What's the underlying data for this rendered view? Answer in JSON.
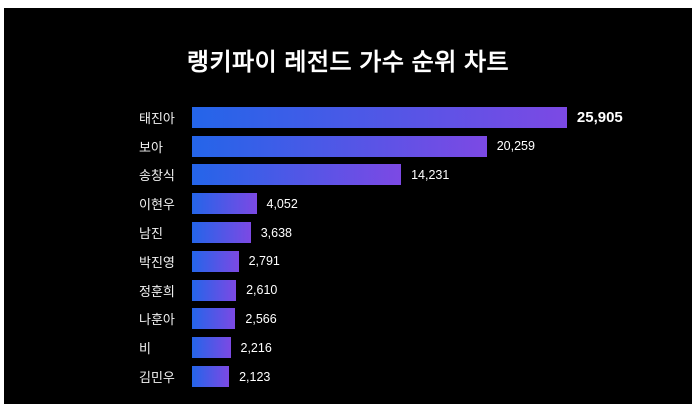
{
  "title": "랭키파이 레전드 가수 순위 차트",
  "colors": {
    "page_background": "#ffffff",
    "panel_background": "#000000",
    "bar_gradient_start": "#2465e9",
    "bar_gradient_end": "#7c49e4",
    "title_text": "#ffffff",
    "label_text": "#f2f2f2",
    "value_text": "#ffffff"
  },
  "chart_data": {
    "type": "bar",
    "orientation": "horizontal",
    "title": "랭키파이 레전드 가수 순위 차트",
    "categories": [
      "태진아",
      "보아",
      "송창식",
      "이현우",
      "남진",
      "박진영",
      "정훈희",
      "나훈아",
      "비",
      "김민우"
    ],
    "values": [
      25905,
      20259,
      14231,
      4052,
      3638,
      2791,
      2610,
      2566,
      2216,
      2123
    ],
    "value_labels": [
      "25,905",
      "20,259",
      "14,231",
      "4,052",
      "3,638",
      "2,791",
      "2,610",
      "2,566",
      "2,216",
      "2,123"
    ],
    "xlim": [
      0,
      26000
    ],
    "grid": false,
    "legend": false,
    "sorted": "descending",
    "highlight_first_value_bold": true
  }
}
